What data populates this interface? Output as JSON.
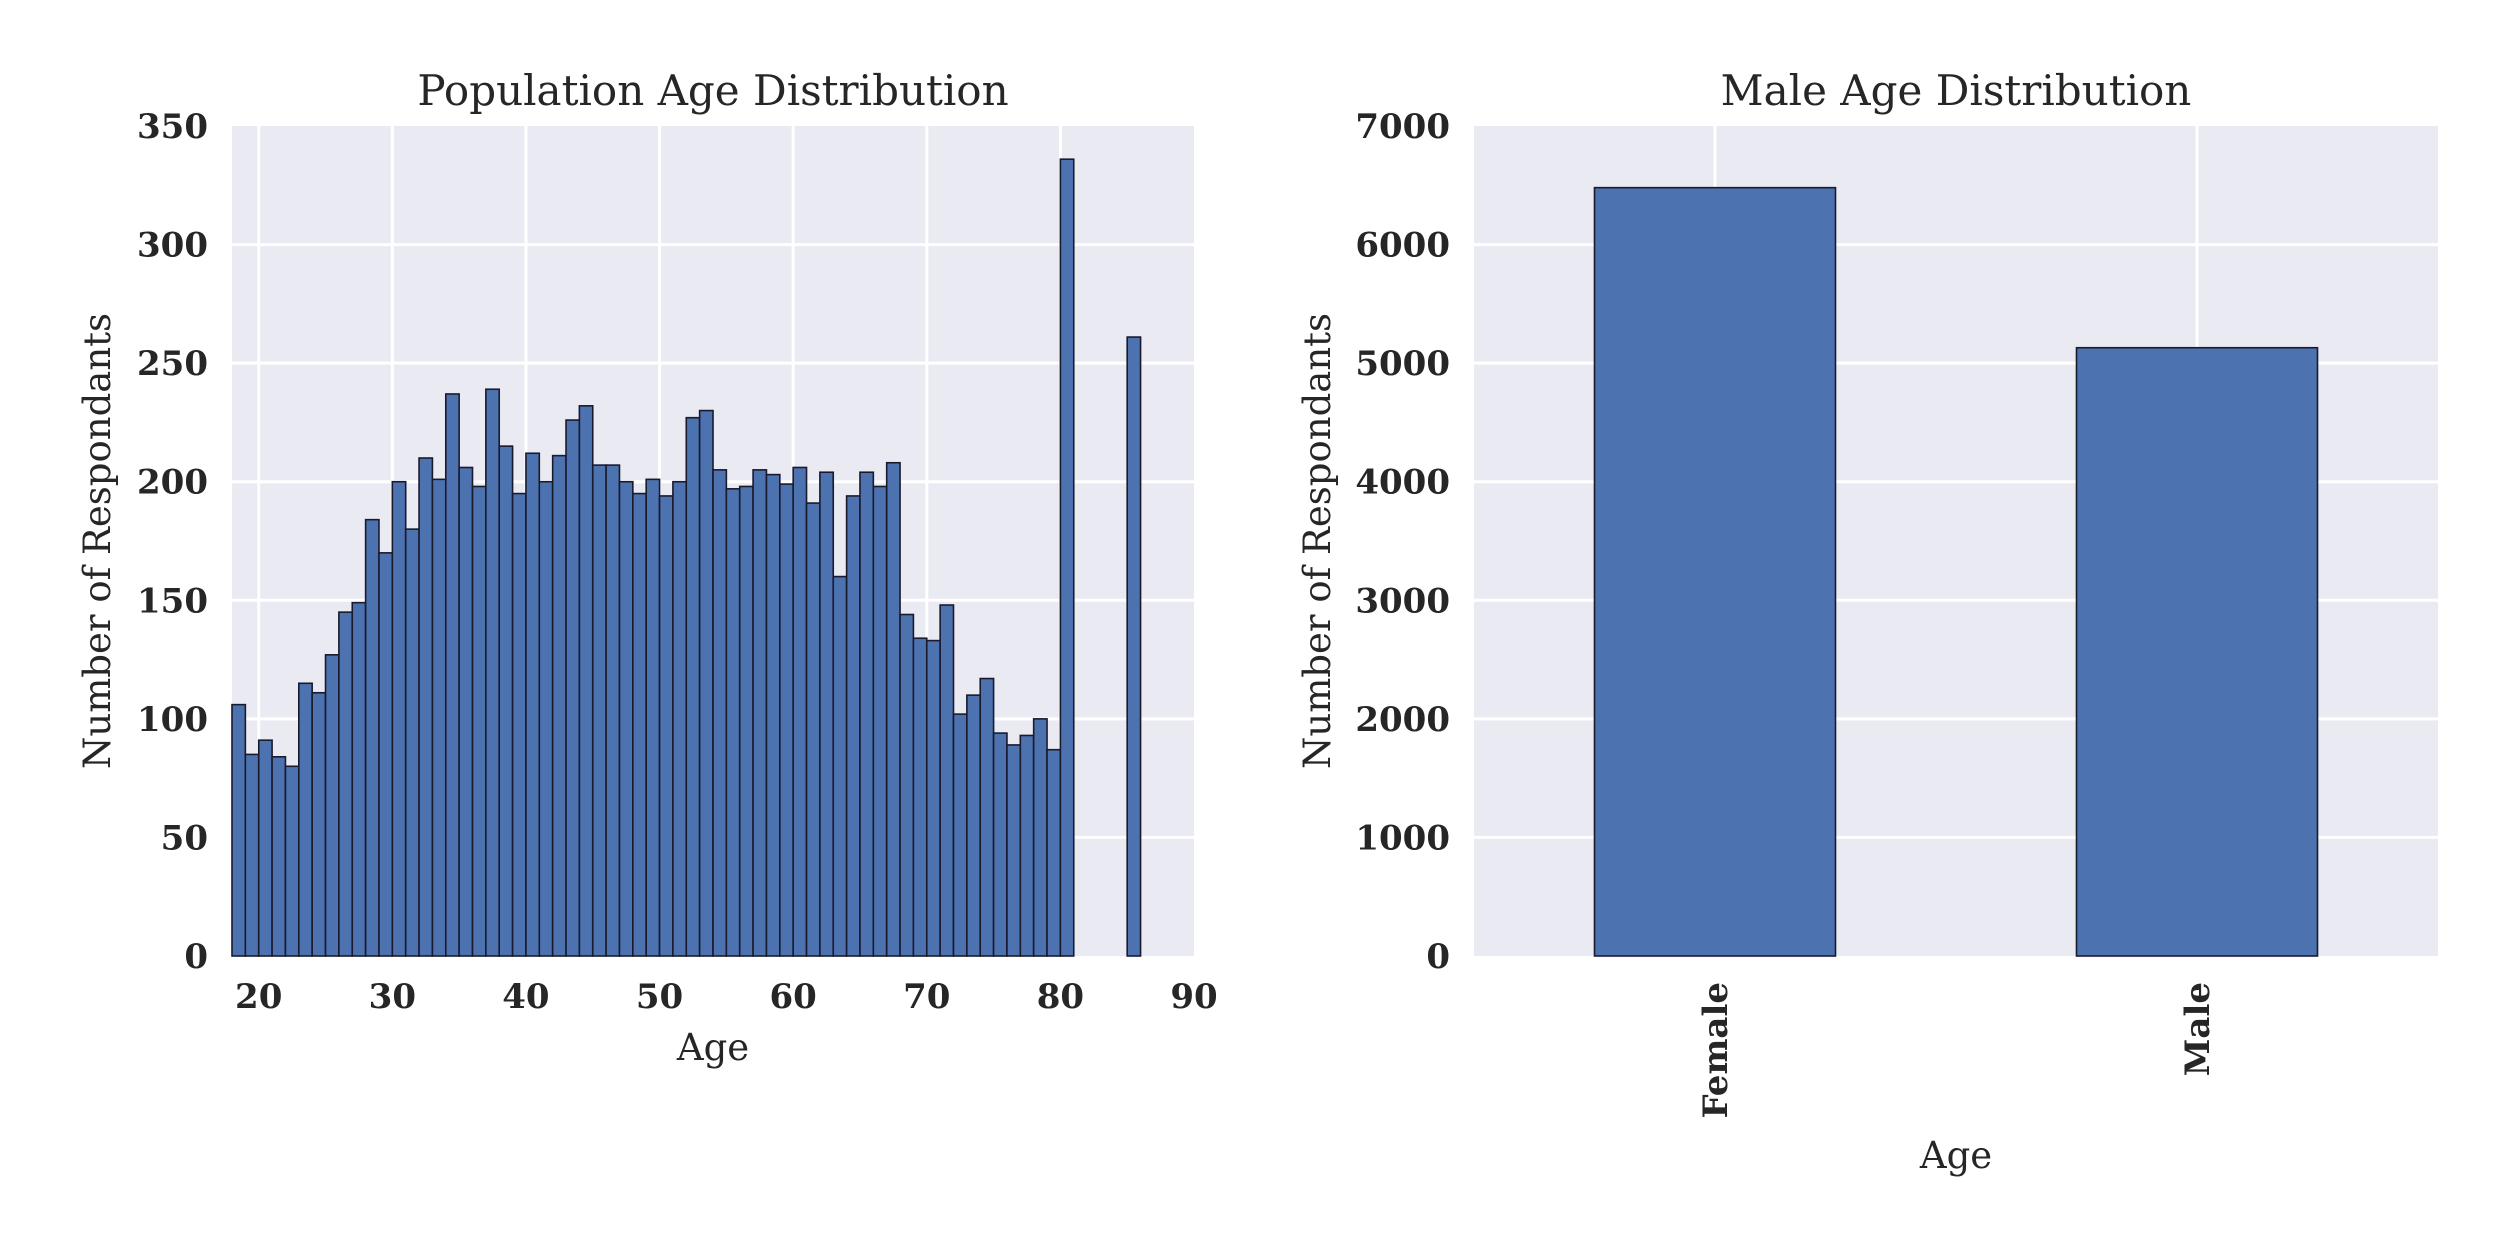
{
  "chart_data": [
    {
      "type": "bar",
      "title": "Population Age Distribution",
      "xlabel": "Age",
      "ylabel": "Number of Respondants",
      "xlim": [
        18,
        90
      ],
      "ylim": [
        0,
        350
      ],
      "xticks": [
        20,
        30,
        40,
        50,
        60,
        70,
        80,
        90
      ],
      "yticks": [
        0,
        50,
        100,
        150,
        200,
        250,
        300,
        350
      ],
      "grid": true,
      "bin_width": 1,
      "bins": [
        18,
        19,
        20,
        21,
        22,
        23,
        24,
        25,
        26,
        27,
        28,
        29,
        30,
        31,
        32,
        33,
        34,
        35,
        36,
        37,
        38,
        39,
        40,
        41,
        42,
        43,
        44,
        45,
        46,
        47,
        48,
        49,
        50,
        51,
        52,
        53,
        54,
        55,
        56,
        57,
        58,
        59,
        60,
        61,
        62,
        63,
        64,
        65,
        66,
        67,
        68,
        69,
        70,
        71,
        72,
        73,
        74,
        75,
        76,
        77,
        78,
        79,
        80,
        85
      ],
      "values": [
        106,
        85,
        91,
        84,
        80,
        115,
        111,
        127,
        145,
        149,
        184,
        170,
        200,
        180,
        210,
        201,
        237,
        206,
        198,
        239,
        215,
        195,
        212,
        200,
        211,
        226,
        232,
        207,
        207,
        200,
        195,
        201,
        194,
        200,
        227,
        230,
        205,
        197,
        198,
        205,
        203,
        199,
        206,
        191,
        204,
        160,
        194,
        204,
        198,
        208,
        144,
        134,
        133,
        148,
        102,
        110,
        117,
        94,
        89,
        93,
        100,
        87,
        336,
        261
      ]
    },
    {
      "type": "bar",
      "title": "Male Age Distribution",
      "xlabel": "Age",
      "ylabel": "Number of Respondants",
      "ylim": [
        0,
        7000
      ],
      "yticks": [
        0,
        1000,
        2000,
        3000,
        4000,
        5000,
        6000,
        7000
      ],
      "grid": true,
      "categories": [
        "Female",
        "Male"
      ],
      "values": [
        6480,
        5130
      ]
    }
  ]
}
